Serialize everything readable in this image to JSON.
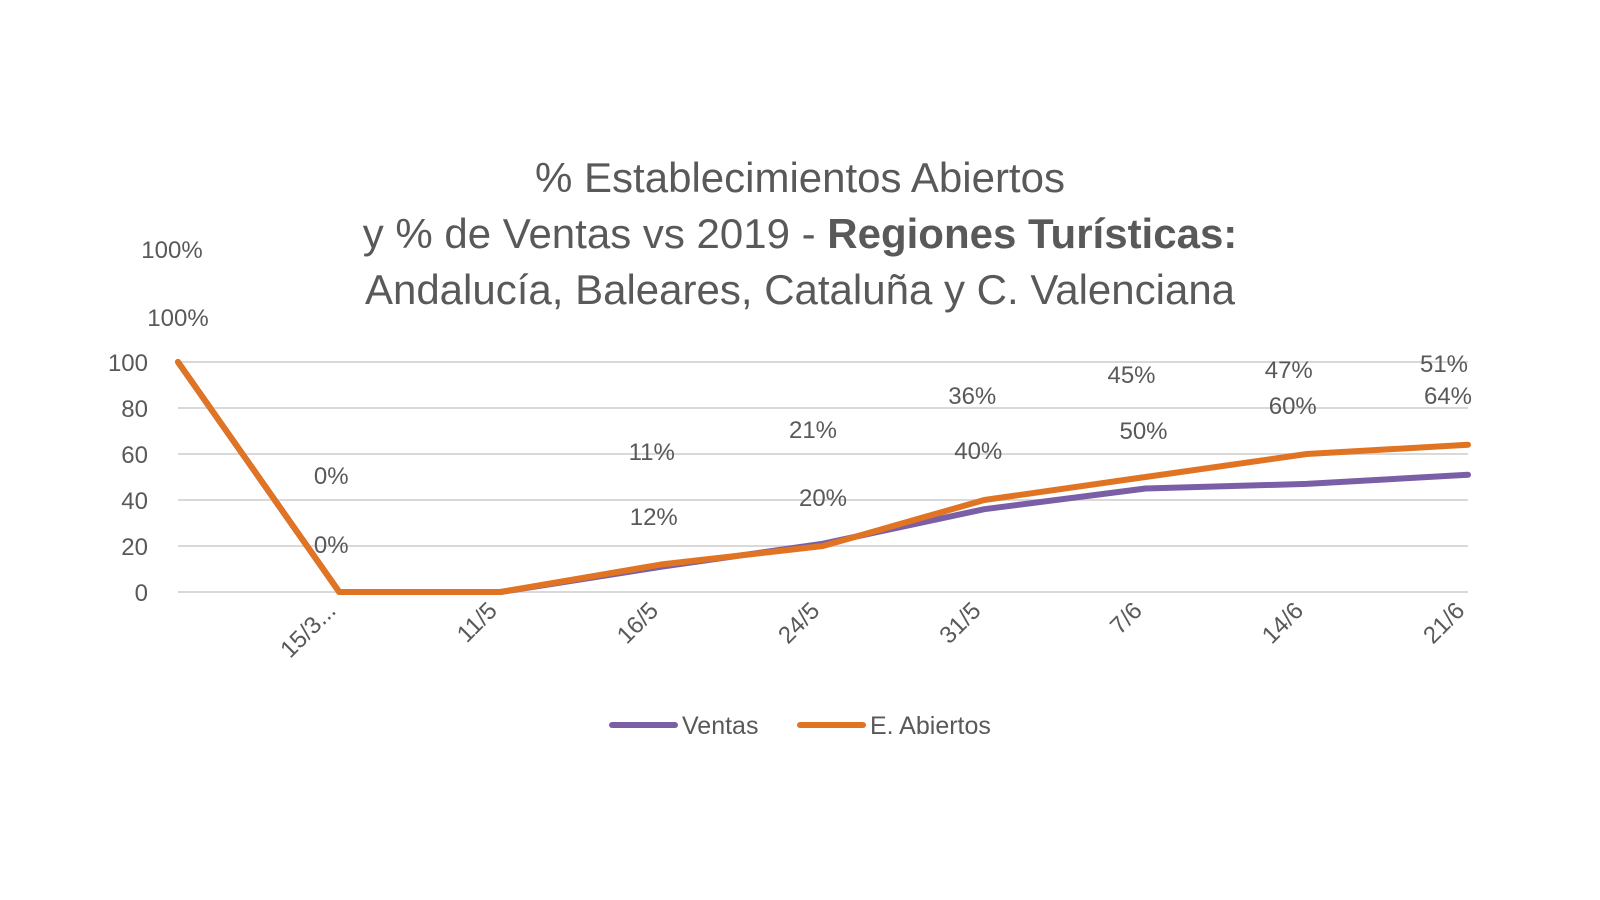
{
  "chart_data": {
    "type": "line",
    "title": {
      "line1": "% Establecimientos  Abiertos",
      "line2_prefix": "y % de Ventas vs 2019 - ",
      "line2_bold": "Regiones Turísticas:",
      "line3": "Andalucía, Baleares, Cataluña y C. Valenciana"
    },
    "categories": [
      "",
      "15/3...",
      "11/5",
      "16/5",
      "24/5",
      "31/5",
      "7/6",
      "14/6",
      "21/6"
    ],
    "ylim": [
      0,
      100
    ],
    "yticks": [
      "0",
      "20",
      "40",
      "60",
      "80",
      "100"
    ],
    "grid": true,
    "legend_position": "bottom",
    "series": [
      {
        "name": "Ventas",
        "color": "#7b5fa6",
        "values": [
          100,
          0,
          0,
          11,
          21,
          36,
          45,
          47,
          51
        ],
        "labels": [
          "100%",
          "0%",
          "",
          "11%",
          "21%",
          "36%",
          "45%",
          "47%",
          "51%"
        ]
      },
      {
        "name": "E. Abiertos",
        "color": "#e07422",
        "values": [
          100,
          0,
          0,
          12,
          20,
          40,
          50,
          60,
          64
        ],
        "labels": [
          "100%",
          "0%",
          "",
          "12%",
          "20%",
          "40%",
          "50%",
          "60%",
          "64%"
        ]
      }
    ]
  }
}
